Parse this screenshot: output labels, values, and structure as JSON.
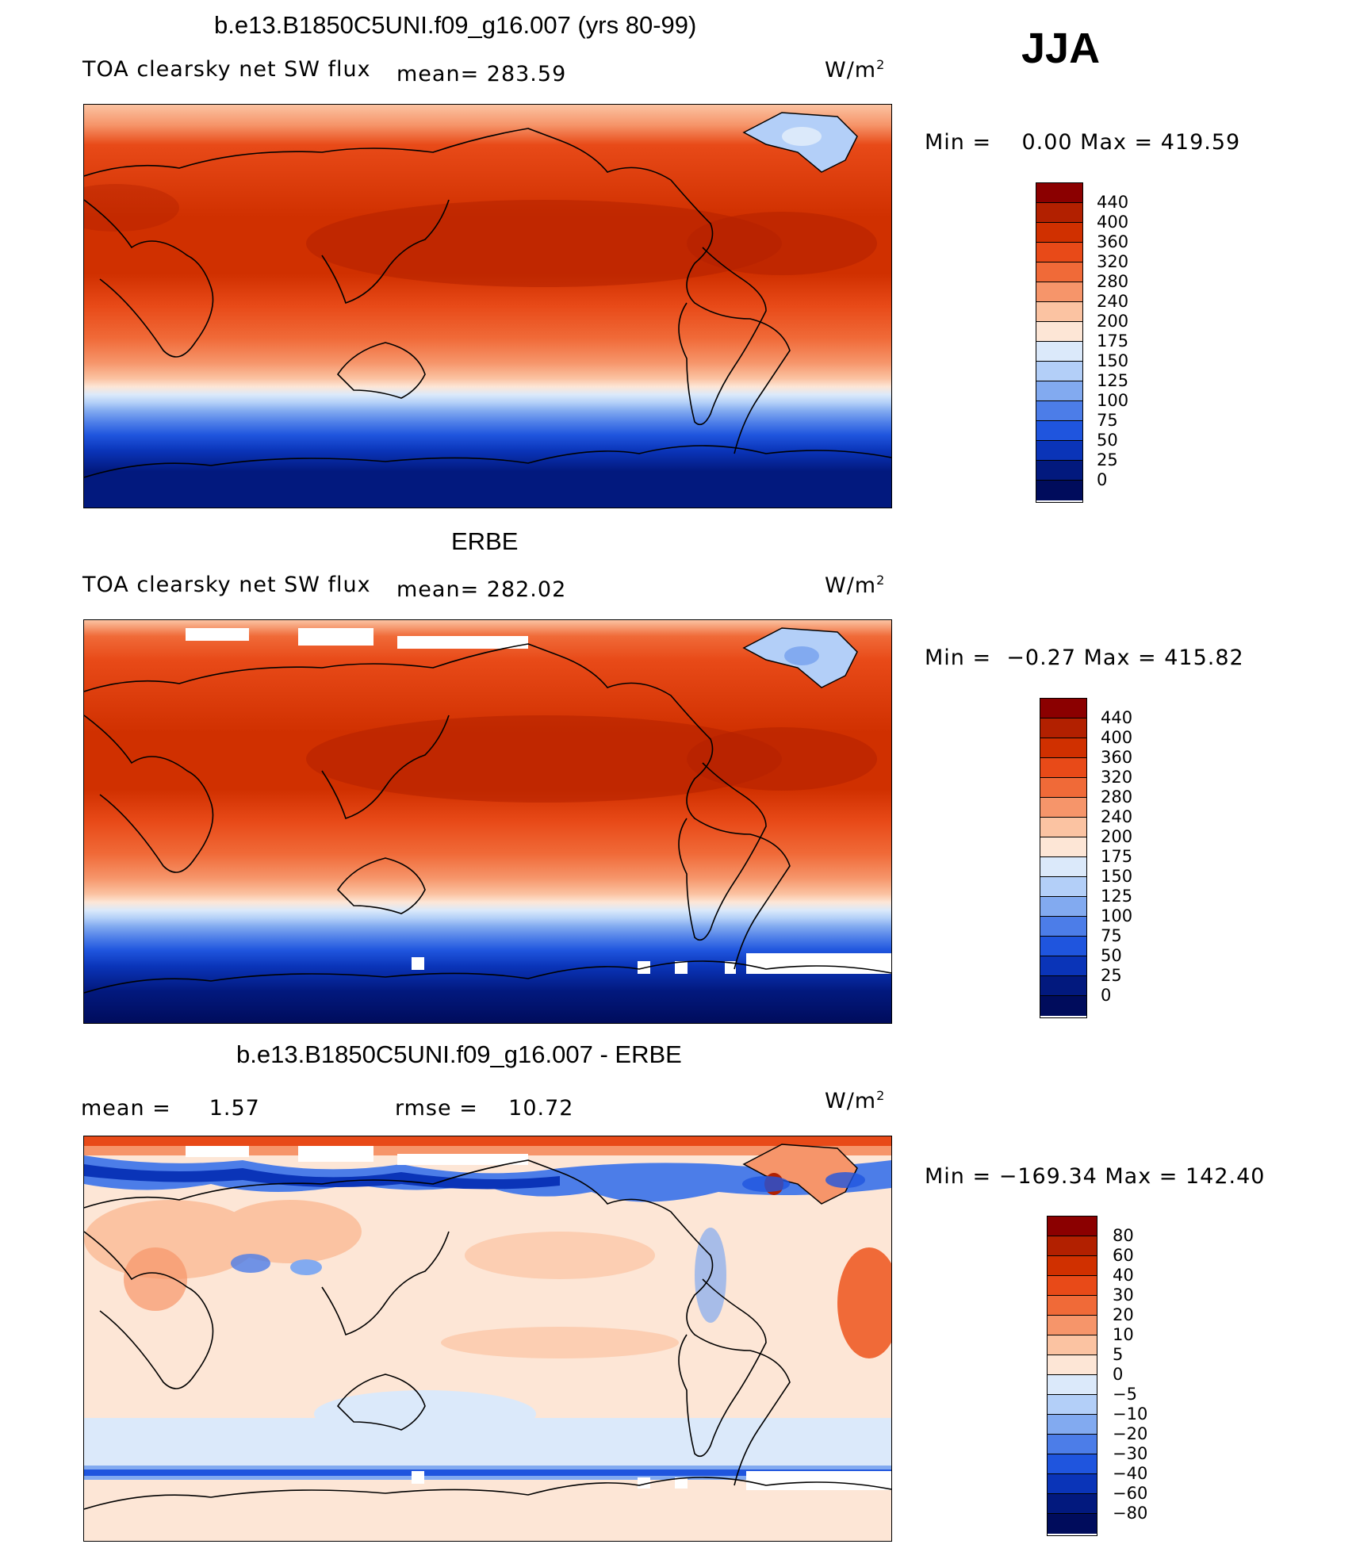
{
  "season": "JJA",
  "panels": [
    {
      "title": "b.e13.B1850C5UNI.f09_g16.007 (yrs 80-99)",
      "variable": "TOA clearsky net SW flux",
      "mean_label": "mean= 283.59",
      "units": "W/m",
      "units_exp": "2",
      "minmax": "Min =    0.00 Max = 419.59",
      "levels": [
        "440",
        "400",
        "360",
        "320",
        "280",
        "240",
        "200",
        "175",
        "150",
        "125",
        "100",
        "75",
        "50",
        "25",
        "0"
      ]
    },
    {
      "title": "ERBE",
      "variable": "TOA clearsky net SW flux",
      "mean_label": "mean= 282.02",
      "units": "W/m",
      "units_exp": "2",
      "minmax": "Min =  −0.27 Max = 415.82",
      "levels": [
        "440",
        "400",
        "360",
        "320",
        "280",
        "240",
        "200",
        "175",
        "150",
        "125",
        "100",
        "75",
        "50",
        "25",
        "0"
      ]
    },
    {
      "title": "b.e13.B1850C5UNI.f09_g16.007 - ERBE",
      "mean_text": "mean =     1.57",
      "rmse_text": "rmse =    10.72",
      "units": "W/m",
      "units_exp": "2",
      "minmax": "Min = −169.34 Max = 142.40",
      "levels": [
        "80",
        "60",
        "40",
        "30",
        "20",
        "10",
        "5",
        "0",
        "−5",
        "−10",
        "−20",
        "−30",
        "−40",
        "−60",
        "−80"
      ]
    }
  ],
  "colors": {
    "abs_scale": [
      "#8b0000",
      "#b22000",
      "#d03000",
      "#e84a18",
      "#f06a38",
      "#f6956a",
      "#fbc3a2",
      "#fde6d6",
      "#dbe9fa",
      "#b3cff8",
      "#82aaf0",
      "#4c7de8",
      "#1f55de",
      "#0a34b8",
      "#02197e",
      "#000c5c"
    ],
    "diff_scale": [
      "#8b0000",
      "#b22000",
      "#d03000",
      "#e84a18",
      "#f06a38",
      "#f6956a",
      "#fbc3a2",
      "#fde6d6",
      "#dbe9fa",
      "#b3cff8",
      "#82aaf0",
      "#4c7de8",
      "#1f55de",
      "#0a34b8",
      "#02197e",
      "#000c5c"
    ]
  }
}
